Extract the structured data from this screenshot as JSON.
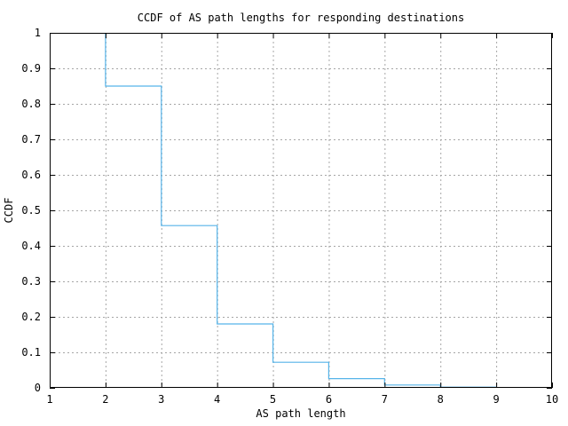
{
  "chart_data": {
    "type": "line",
    "subtype": "ccdf-step",
    "title": "CCDF of AS path lengths for responding destinations",
    "xlabel": "AS path length",
    "ylabel": "CCDF",
    "xlim": [
      1,
      10
    ],
    "ylim": [
      0,
      1
    ],
    "x_tick_values": [
      1,
      2,
      3,
      4,
      5,
      6,
      7,
      8,
      9,
      10
    ],
    "x_tick_labels": [
      "1",
      "2",
      "3",
      "4",
      "5",
      "6",
      "7",
      "8",
      "9",
      "10"
    ],
    "y_tick_values": [
      0,
      0.1,
      0.2,
      0.3,
      0.4,
      0.5,
      0.6,
      0.7,
      0.8,
      0.9,
      1
    ],
    "y_tick_labels": [
      "0",
      "0.1",
      "0.2",
      "0.3",
      "0.4",
      "0.5",
      "0.6",
      "0.7",
      "0.8",
      "0.9",
      "1"
    ],
    "grid": true,
    "legend_position": "none",
    "colors": {
      "line": "#56b4e9",
      "grid": "#a6a6a6",
      "axis": "#000000",
      "background": "#ffffff"
    },
    "series": [
      {
        "name": "ccdf",
        "step_levels": [
          {
            "x_from": 2,
            "x_to": 3,
            "value": 0.85
          },
          {
            "x_from": 3,
            "x_to": 4,
            "value": 0.457
          },
          {
            "x_from": 4,
            "x_to": 5,
            "value": 0.18
          },
          {
            "x_from": 5,
            "x_to": 6,
            "value": 0.072
          },
          {
            "x_from": 6,
            "x_to": 7,
            "value": 0.026
          },
          {
            "x_from": 7,
            "x_to": 8,
            "value": 0.008
          },
          {
            "x_from": 8,
            "x_to": 9,
            "value": 0.002
          }
        ],
        "points": [
          [
            2,
            1.0
          ],
          [
            2,
            0.85
          ],
          [
            3,
            0.85
          ],
          [
            3,
            0.457
          ],
          [
            4,
            0.457
          ],
          [
            4,
            0.18
          ],
          [
            5,
            0.18
          ],
          [
            5,
            0.072
          ],
          [
            6,
            0.072
          ],
          [
            6,
            0.026
          ],
          [
            7,
            0.026
          ],
          [
            7,
            0.008
          ],
          [
            8,
            0.008
          ],
          [
            8,
            0.002
          ],
          [
            9,
            0.002
          ],
          [
            9,
            0.0
          ]
        ]
      }
    ]
  }
}
